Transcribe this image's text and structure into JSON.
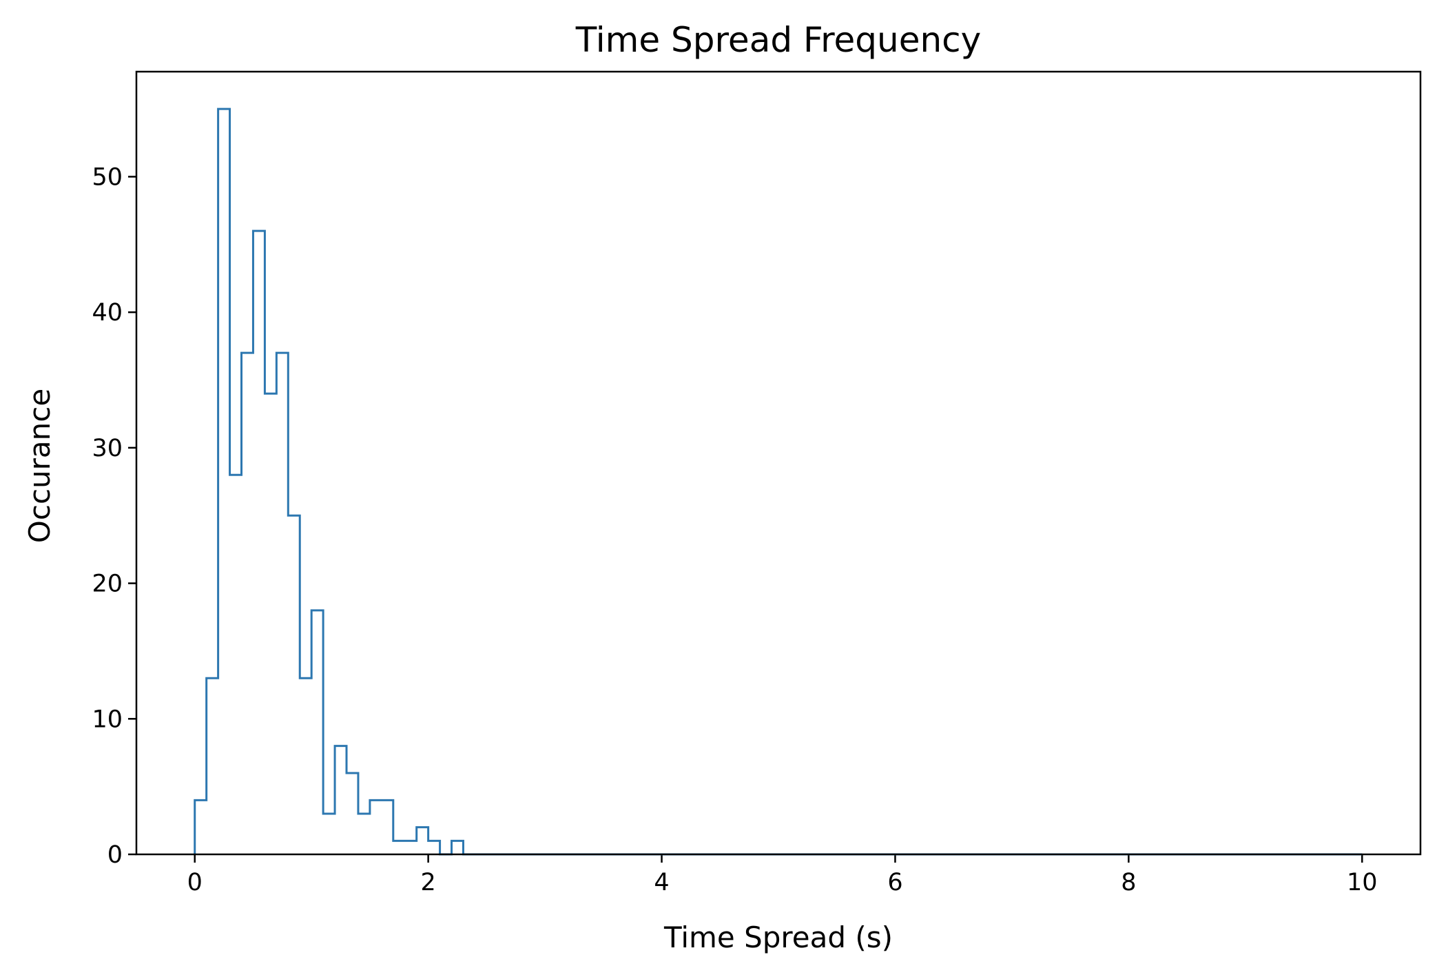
{
  "chart_data": {
    "type": "histogram",
    "title": "Time Spread Frequency",
    "xlabel": "Time Spread (s)",
    "ylabel": "Occurance",
    "xlim": [
      -0.5,
      10.5
    ],
    "ylim": [
      0,
      57.75
    ],
    "xticks": [
      0,
      2,
      4,
      6,
      8,
      10
    ],
    "yticks": [
      0,
      10,
      20,
      30,
      40,
      50
    ],
    "grid": false,
    "legend": "none",
    "bin_start": 0,
    "bin_width": 0.1,
    "counts": [
      4,
      13,
      55,
      28,
      37,
      46,
      34,
      37,
      25,
      13,
      18,
      3,
      8,
      6,
      3,
      4,
      4,
      1,
      1,
      2,
      1,
      0,
      1,
      0,
      0,
      0,
      0,
      0,
      0,
      0,
      0,
      0,
      0,
      0,
      0,
      0,
      0,
      0,
      0,
      0,
      0,
      0,
      0,
      0,
      0,
      0,
      0,
      0,
      0,
      0,
      0,
      0,
      0,
      0,
      0,
      0,
      0,
      0,
      0,
      0,
      0,
      0,
      0,
      0,
      0,
      0,
      0,
      0,
      0,
      0,
      0,
      0,
      0,
      0,
      0,
      0,
      0,
      0,
      0,
      0,
      0,
      0,
      0,
      0,
      0,
      0,
      0,
      0,
      0,
      0,
      0,
      0,
      0,
      0,
      0,
      0,
      0,
      0,
      0,
      0
    ],
    "series_color": "#2c77b0",
    "axis_color": "#000000"
  }
}
